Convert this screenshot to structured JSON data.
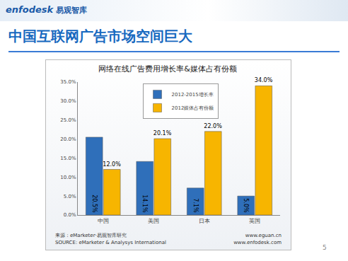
{
  "slide": {
    "logo": "enfodesk",
    "logo_cn": "易观智库",
    "heading": "中国互联网广告市场空间巨大",
    "page_number": "5",
    "source": [
      [
        "来源：eMarketer·易观智库研究",
        "www.eguan.cn"
      ],
      [
        "SOURCE: eMarketer & Analysys International",
        "www.enfodesk.com"
      ]
    ]
  },
  "chart_data": {
    "type": "bar",
    "title": "网络在线广告费用增长率&媒体占有份额",
    "categories": [
      "中国",
      "美国",
      "日本",
      "英国"
    ],
    "series": [
      {
        "name": "2012-2015增长率",
        "color": "#2f6fba",
        "values": [
          20.5,
          14.1,
          7.1,
          5.0
        ],
        "value_labels": [
          "20.5%",
          "14.1%",
          "7.1%",
          "5.0%"
        ]
      },
      {
        "name": "2012媒体占有份额",
        "color": "#f7b500",
        "values": [
          12.0,
          20.1,
          22.0,
          34.0
        ],
        "value_labels": [
          "12.0%",
          "20.1%",
          "22.0%",
          "34.0%"
        ]
      }
    ],
    "ylim": [
      0,
      35
    ],
    "yticks": [
      {
        "value": 0,
        "label": "0.0%"
      },
      {
        "value": 5,
        "label": "5.0%"
      },
      {
        "value": 10,
        "label": "10.0%"
      },
      {
        "value": 15,
        "label": "15.0%"
      },
      {
        "value": 20,
        "label": "20.0%"
      },
      {
        "value": 25,
        "label": "25.0%"
      },
      {
        "value": 30,
        "label": "30.0%"
      },
      {
        "value": 35,
        "label": "35.0%"
      }
    ],
    "grid": false,
    "legend": "upper center",
    "data_labels": true
  }
}
